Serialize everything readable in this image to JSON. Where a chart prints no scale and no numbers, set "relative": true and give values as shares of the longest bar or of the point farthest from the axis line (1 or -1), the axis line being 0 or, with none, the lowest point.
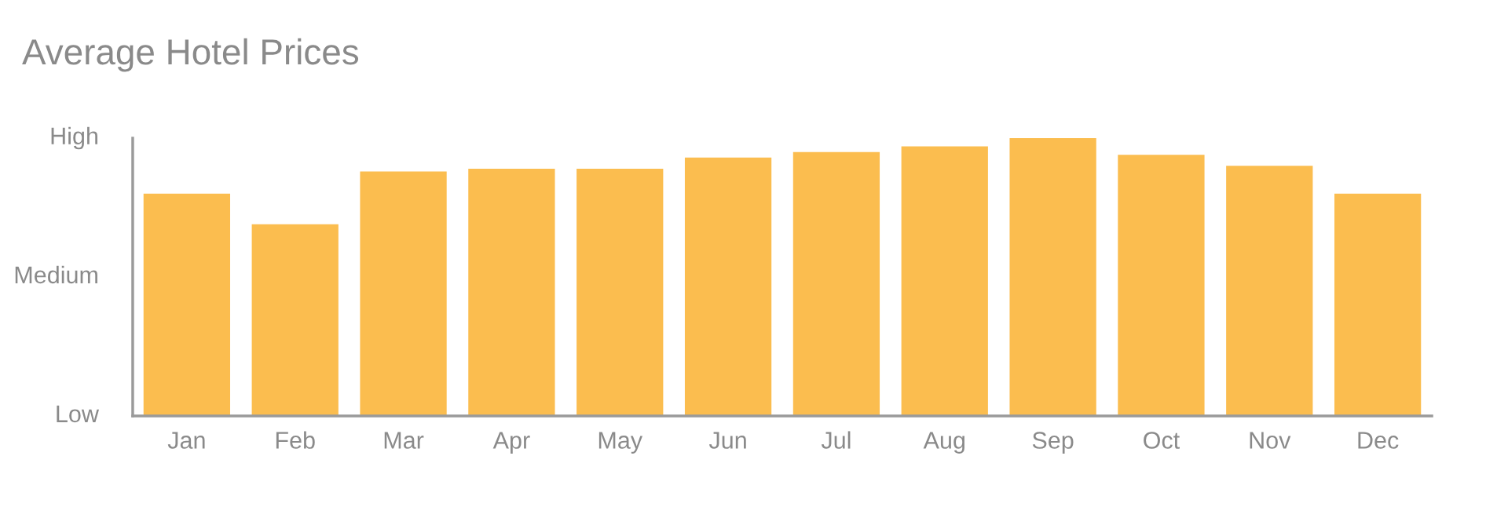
{
  "chart_data": {
    "type": "bar",
    "title": "Average Hotel Prices",
    "categories": [
      "Jan",
      "Feb",
      "Mar",
      "Apr",
      "May",
      "Jun",
      "Jul",
      "Aug",
      "Sep",
      "Oct",
      "Nov",
      "Dec"
    ],
    "values": [
      0.8,
      0.69,
      0.88,
      0.89,
      0.89,
      0.93,
      0.95,
      0.97,
      1.0,
      0.94,
      0.9,
      0.8
    ],
    "color": "#fbbd4f",
    "relative": true,
    "annotations": [
      "High",
      "Medium",
      "Low"
    ]
  }
}
